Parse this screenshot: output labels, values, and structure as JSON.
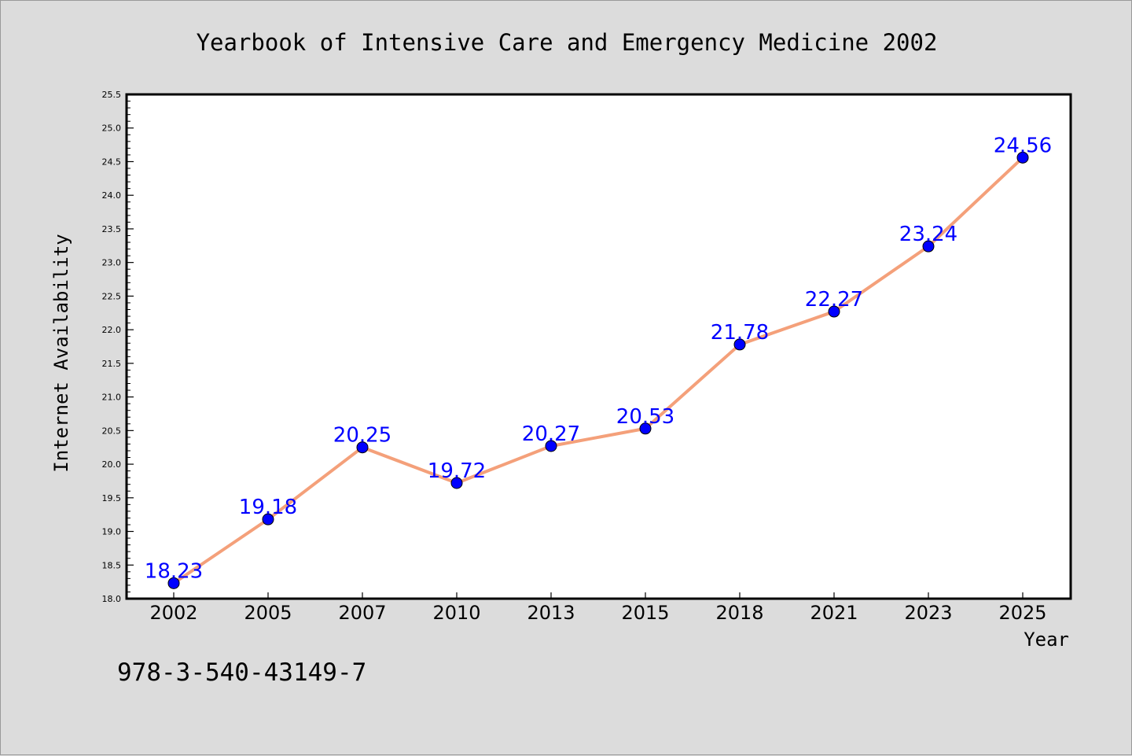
{
  "chart_data": {
    "type": "line",
    "title": "Yearbook of Intensive Care and Emergency Medicine 2002",
    "xlabel": "Year",
    "ylabel": "Internet Availability",
    "categories": [
      "2002",
      "2005",
      "2007",
      "2010",
      "2013",
      "2015",
      "2018",
      "2021",
      "2023",
      "2025"
    ],
    "series": [
      {
        "values": [
          18.23,
          19.18,
          20.25,
          19.72,
          20.27,
          20.53,
          21.78,
          22.27,
          23.24,
          24.56
        ]
      }
    ],
    "data_labels": [
      "18.23",
      "19.18",
      "20.25",
      "19.72",
      "20.27",
      "20.53",
      "21.78",
      "22.27",
      "23.24",
      "24.56"
    ],
    "ylim": [
      18.0,
      25.5
    ],
    "yticks": [
      "18.0",
      "18.5",
      "19.0",
      "19.5",
      "20.0",
      "20.5",
      "21.0",
      "21.5",
      "22.0",
      "22.5",
      "23.0",
      "23.5",
      "24.0",
      "24.5",
      "25.0",
      "25.5"
    ],
    "grid": false,
    "legend": "none",
    "colors": {
      "line": "#f4a07a",
      "marker": "#0000ff",
      "label": "#0000ff",
      "background": "#dcdcdc",
      "plot_area": "#ffffff"
    }
  },
  "footnote": "978-3-540-43149-7"
}
